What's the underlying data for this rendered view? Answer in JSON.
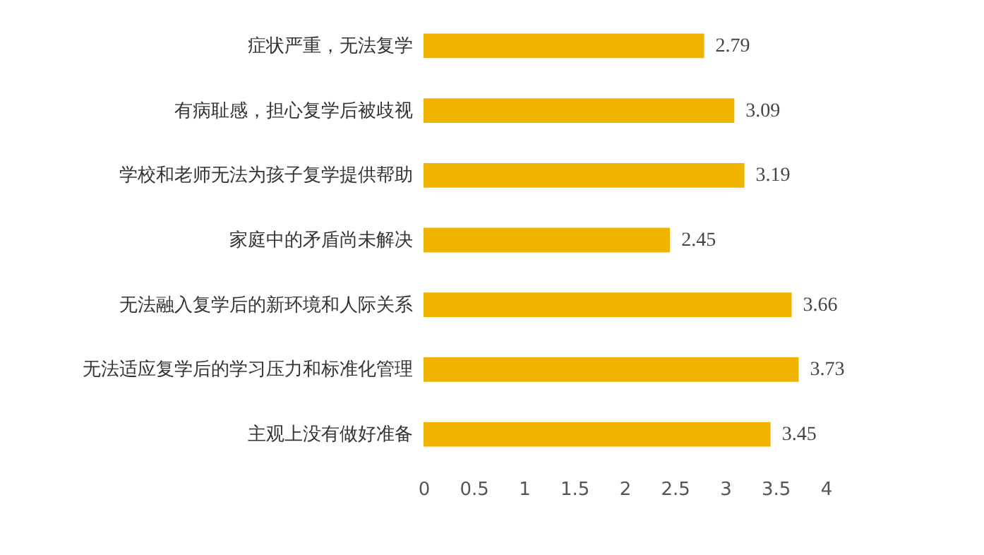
{
  "chart_data": {
    "type": "bar",
    "orientation": "horizontal",
    "categories": [
      "症状严重，无法复学",
      "有病耻感，担心复学后被歧视",
      "学校和老师无法为孩子复学提供帮助",
      "家庭中的矛盾尚未解决",
      "无法融入复学后的新环境和人际关系",
      "无法适应复学后的学习压力和标准化管理",
      "主观上没有做好准备"
    ],
    "values": [
      2.79,
      3.09,
      3.19,
      2.45,
      3.66,
      3.73,
      3.45
    ],
    "color": "#f0b400",
    "xlim": [
      0,
      4
    ],
    "xticks": [
      0,
      0.5,
      1,
      1.5,
      2,
      2.5,
      3,
      3.5,
      4
    ],
    "data_labels": true
  }
}
